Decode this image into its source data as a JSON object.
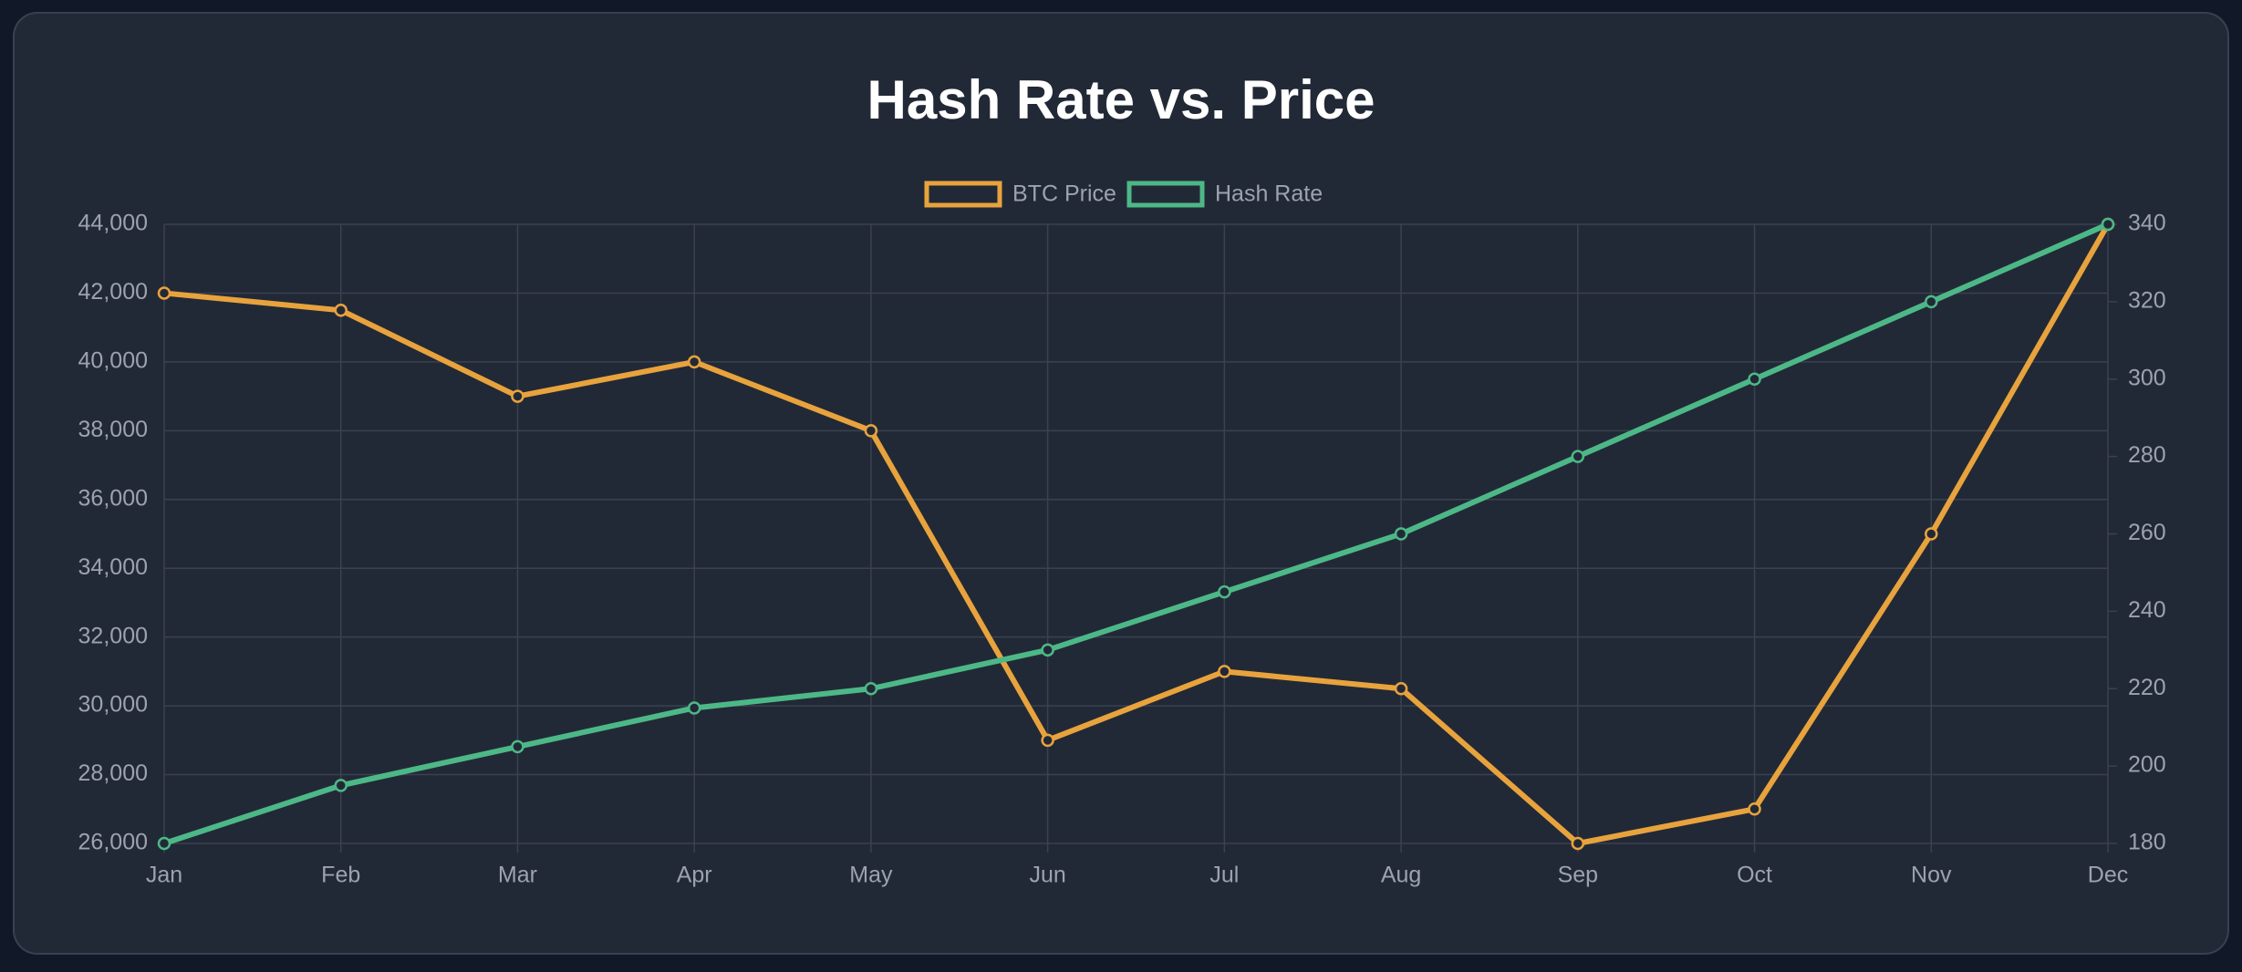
{
  "chart_data": {
    "type": "line",
    "title": "Hash Rate vs. Price",
    "categories": [
      "Jan",
      "Feb",
      "Mar",
      "Apr",
      "May",
      "Jun",
      "Jul",
      "Aug",
      "Sep",
      "Oct",
      "Nov",
      "Dec"
    ],
    "series": [
      {
        "name": "BTC Price",
        "color": "#e8a33d",
        "values": [
          42000,
          41500,
          39000,
          40000,
          38000,
          29000,
          31000,
          30500,
          26000,
          27000,
          35000,
          44000
        ]
      },
      {
        "name": "Hash Rate",
        "color": "#4db887",
        "axis": "y2",
        "values": [
          180,
          195,
          205,
          215,
          220,
          230,
          245,
          260,
          280,
          300,
          320,
          340
        ]
      }
    ],
    "ylim": [
      26000,
      44000
    ],
    "yticks": [
      {
        "value": 26000,
        "label": "26,000"
      },
      {
        "value": 28000,
        "label": "28,000"
      },
      {
        "value": 30000,
        "label": "30,000"
      },
      {
        "value": 32000,
        "label": "32,000"
      },
      {
        "value": 34000,
        "label": "34,000"
      },
      {
        "value": 36000,
        "label": "36,000"
      },
      {
        "value": 38000,
        "label": "38,000"
      },
      {
        "value": 40000,
        "label": "40,000"
      },
      {
        "value": 42000,
        "label": "42,000"
      },
      {
        "value": 44000,
        "label": "44,000"
      }
    ],
    "y2lim": [
      180,
      340
    ],
    "y2ticks": [
      180,
      200,
      220,
      240,
      260,
      280,
      300,
      320,
      340
    ],
    "grid": true,
    "legend": "top"
  }
}
